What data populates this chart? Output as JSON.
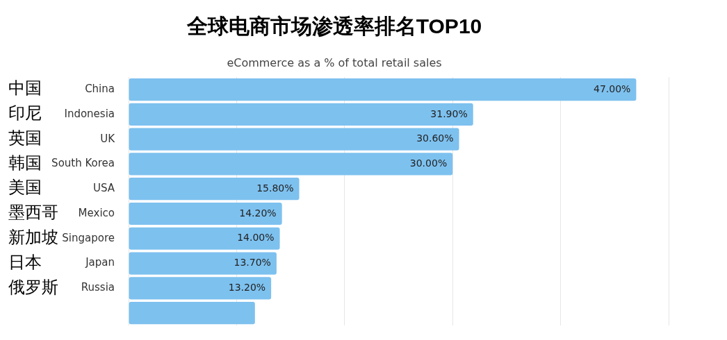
{
  "chart_data": {
    "type": "bar",
    "orientation": "horizontal",
    "title": "全球电商市场渗透率排名TOP10",
    "subtitle": "eCommerce as a % of total retail sales",
    "categories": [
      "China",
      "Indonesia",
      "UK",
      "South Korea",
      "USA",
      "Mexico",
      "Singapore",
      "Japan",
      "Russia",
      null
    ],
    "values": [
      47.0,
      31.9,
      30.6,
      30.0,
      15.8,
      14.2,
      14.0,
      13.7,
      13.2,
      11.7
    ],
    "value_labels": [
      "47.00%",
      "31.90%",
      "30.60%",
      "30.00%",
      "15.80%",
      "14.20%",
      "14.00%",
      "13.70%",
      "13.20%",
      null
    ],
    "color": "#7dc1ef",
    "xlim": [
      0,
      50
    ],
    "xticks": [
      {
        "value": 0,
        "label": null
      },
      {
        "value": 10,
        "label": null
      },
      {
        "value": 20,
        "label": null
      },
      {
        "value": 30,
        "label": null
      },
      {
        "value": 40,
        "label": null
      },
      {
        "value": 50,
        "label": null
      }
    ],
    "grid": "x",
    "tick_labels": "y",
    "legend": false,
    "annotations": [
      "中国",
      "印尼",
      "英国",
      "韩国",
      "美国",
      "墨西哥",
      "新加坡",
      "日本",
      "俄罗斯"
    ]
  }
}
